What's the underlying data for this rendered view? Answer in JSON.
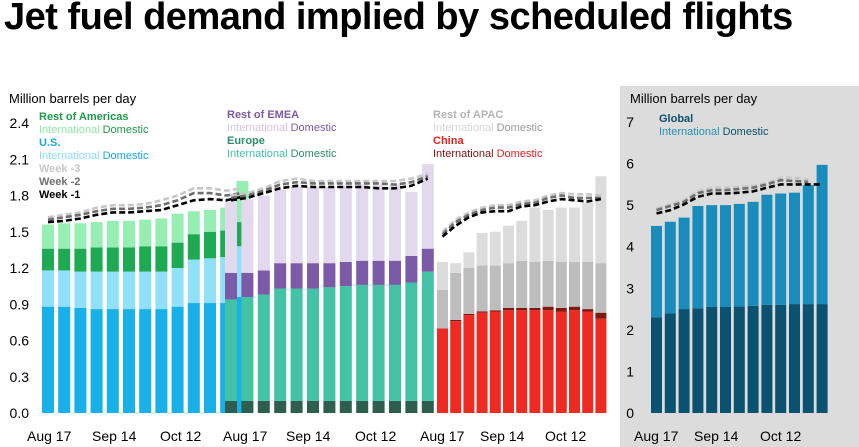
{
  "page": {
    "title": "Jet fuel demand implied by scheduled flights"
  },
  "chart_data": {
    "type": "bar",
    "panels": [
      {
        "id": "americas",
        "ylabel": "Million barrels per day",
        "ylim": [
          0,
          2.4
        ],
        "yticks": [
          "0.0",
          "0.3",
          "0.6",
          "0.9",
          "1.2",
          "1.5",
          "1.8",
          "2.1",
          "2.4"
        ],
        "xticks": [
          "Aug 17",
          "Sep 14",
          "Oct 12"
        ],
        "legend": [
          {
            "title": "Rest of Americas",
            "title_color": "#1e9a48",
            "parts": [
              {
                "text": "International",
                "color": "#8ee8a8"
              },
              {
                "text": " Domestic",
                "color": "#1e9a48"
              }
            ]
          },
          {
            "title": "U.S.",
            "title_color": "#17a8e0",
            "parts": [
              {
                "text": "International",
                "color": "#8cdcf6"
              },
              {
                "text": " Domestic",
                "color": "#17a8e0"
              }
            ]
          },
          {
            "title": "Week -3",
            "title_color": "#c8c8c8",
            "parts": []
          },
          {
            "title": "Week -2",
            "title_color": "#707070",
            "parts": []
          },
          {
            "title": "Week -1",
            "title_color": "#000000",
            "parts": []
          }
        ],
        "colors": [
          "#17b0e8",
          "#90e0fa",
          "#1eaa52",
          "#96eeb2"
        ],
        "stack_names": [
          "U.S. Domestic",
          "U.S. International",
          "Rest of Americas Domestic",
          "Rest of Americas International"
        ],
        "stacks": [
          [
            0.88,
            0.3,
            0.18,
            0.2
          ],
          [
            0.88,
            0.3,
            0.18,
            0.21
          ],
          [
            0.87,
            0.3,
            0.19,
            0.21
          ],
          [
            0.86,
            0.31,
            0.2,
            0.21
          ],
          [
            0.86,
            0.31,
            0.2,
            0.22
          ],
          [
            0.86,
            0.31,
            0.2,
            0.22
          ],
          [
            0.86,
            0.31,
            0.21,
            0.22
          ],
          [
            0.86,
            0.31,
            0.21,
            0.23
          ],
          [
            0.88,
            0.32,
            0.21,
            0.24
          ],
          [
            0.91,
            0.36,
            0.21,
            0.19
          ],
          [
            0.91,
            0.37,
            0.22,
            0.18
          ],
          [
            0.91,
            0.38,
            0.22,
            0.19
          ],
          [
            0.96,
            0.42,
            0.2,
            0.34
          ]
        ],
        "week3": [
          1.62,
          1.64,
          1.66,
          1.7,
          1.72,
          1.72,
          1.73,
          1.76,
          1.8,
          1.86,
          1.86,
          1.84,
          1.86
        ],
        "week2": [
          1.6,
          1.62,
          1.64,
          1.67,
          1.69,
          1.69,
          1.7,
          1.72,
          1.76,
          1.82,
          1.82,
          1.8,
          1.82
        ],
        "week1": [
          1.58,
          1.59,
          1.61,
          1.64,
          1.66,
          1.66,
          1.67,
          1.68,
          1.72,
          1.76,
          1.77,
          1.76,
          1.79
        ]
      },
      {
        "id": "emea",
        "ylabel": "",
        "ylim": [
          0,
          2.4
        ],
        "yticks": [],
        "xticks": [
          "Aug 17",
          "Sep 14",
          "Oct 12"
        ],
        "legend": [
          {
            "title": "Rest of EMEA",
            "title_color": "#7b5aa8",
            "parts": [
              {
                "text": "International",
                "color": "#d2c6e6"
              },
              {
                "text": " Domestic",
                "color": "#7b5aa8"
              }
            ]
          },
          {
            "title": "Europe",
            "title_color": "#2e8e6e",
            "parts": [
              {
                "text": "International",
                "color": "#44c2a6"
              },
              {
                "text": " Domestic",
                "color": "#2e8e6e"
              }
            ]
          }
        ],
        "colors": [
          "#2e5e4e",
          "#44c2a6",
          "#7b5aa8",
          "#e2d9ee"
        ],
        "stack_names": [
          "Europe Domestic",
          "Europe International",
          "Rest of EMEA Domestic",
          "Rest of EMEA International"
        ],
        "stacks": [
          [
            0.1,
            0.84,
            0.22,
            0.59
          ],
          [
            0.1,
            0.86,
            0.2,
            0.61
          ],
          [
            0.1,
            0.88,
            0.2,
            0.62
          ],
          [
            0.1,
            0.93,
            0.21,
            0.61
          ],
          [
            0.1,
            0.93,
            0.21,
            0.63
          ],
          [
            0.1,
            0.93,
            0.21,
            0.63
          ],
          [
            0.1,
            0.94,
            0.2,
            0.63
          ],
          [
            0.1,
            0.95,
            0.2,
            0.63
          ],
          [
            0.1,
            0.96,
            0.2,
            0.63
          ],
          [
            0.1,
            0.96,
            0.2,
            0.63
          ],
          [
            0.1,
            0.96,
            0.2,
            0.63
          ],
          [
            0.1,
            0.98,
            0.22,
            0.53
          ],
          [
            0.1,
            1.07,
            0.19,
            0.7
          ]
        ],
        "week3": [
          1.8,
          1.82,
          1.86,
          1.92,
          1.94,
          1.92,
          1.92,
          1.92,
          1.92,
          1.92,
          1.92,
          1.94,
          1.98
        ],
        "week2": [
          1.78,
          1.8,
          1.84,
          1.89,
          1.91,
          1.9,
          1.9,
          1.9,
          1.9,
          1.9,
          1.89,
          1.91,
          1.96
        ],
        "week1": [
          1.76,
          1.78,
          1.82,
          1.86,
          1.88,
          1.87,
          1.87,
          1.87,
          1.87,
          1.86,
          1.86,
          1.88,
          1.94
        ]
      },
      {
        "id": "apac",
        "ylabel": "",
        "ylim": [
          0,
          2.4
        ],
        "yticks": [],
        "xticks": [
          "Aug 17",
          "Sep 14",
          "Oct 12"
        ],
        "legend": [
          {
            "title": "Rest of APAC",
            "title_color": "#b4b4b4",
            "parts": [
              {
                "text": "International",
                "color": "#d6d6d6"
              },
              {
                "text": " Domestic",
                "color": "#9a9a9a"
              }
            ]
          },
          {
            "title": "China",
            "title_color": "#e8201e",
            "parts": [
              {
                "text": "International",
                "color": "#7a1410"
              },
              {
                "text": " Domestic",
                "color": "#e8201e"
              }
            ]
          }
        ],
        "colors": [
          "#ee2a22",
          "#7e1812",
          "#bdbdbd",
          "#dcdcdc"
        ],
        "stack_names": [
          "China Domestic",
          "China International",
          "Rest of APAC Domestic",
          "Rest of APAC International"
        ],
        "stacks": [
          [
            0.7,
            0.0,
            0.32,
            0.23
          ],
          [
            0.76,
            0.01,
            0.39,
            0.08
          ],
          [
            0.81,
            0.01,
            0.38,
            0.13
          ],
          [
            0.83,
            0.01,
            0.38,
            0.27
          ],
          [
            0.84,
            0.01,
            0.37,
            0.28
          ],
          [
            0.85,
            0.02,
            0.37,
            0.31
          ],
          [
            0.85,
            0.02,
            0.39,
            0.33
          ],
          [
            0.85,
            0.02,
            0.38,
            0.45
          ],
          [
            0.85,
            0.03,
            0.38,
            0.42
          ],
          [
            0.84,
            0.03,
            0.38,
            0.45
          ],
          [
            0.85,
            0.03,
            0.37,
            0.45
          ],
          [
            0.84,
            0.02,
            0.39,
            0.49
          ],
          [
            0.78,
            0.05,
            0.41,
            0.72
          ]
        ],
        "week3": [
          1.5,
          1.6,
          1.66,
          1.7,
          1.72,
          1.72,
          1.75,
          1.76,
          1.8,
          1.82,
          1.81,
          1.81,
          1.8
        ],
        "week2": [
          1.48,
          1.58,
          1.64,
          1.68,
          1.7,
          1.7,
          1.73,
          1.74,
          1.78,
          1.8,
          1.78,
          1.78,
          1.78
        ],
        "week1": [
          1.46,
          1.55,
          1.62,
          1.66,
          1.67,
          1.67,
          1.71,
          1.72,
          1.75,
          1.77,
          1.76,
          1.75,
          1.77
        ]
      },
      {
        "id": "global",
        "ylabel": "Million barrels per day",
        "ylim": [
          0,
          7
        ],
        "yticks": [
          "0",
          "1",
          "2",
          "3",
          "4",
          "5",
          "6",
          "7"
        ],
        "xticks": [
          "Aug 17",
          "Sep 14",
          "Oct 12"
        ],
        "legend": [
          {
            "title": "Global",
            "title_color": "#0b4f6c",
            "parts": [
              {
                "text": "International",
                "color": "#2292c2"
              },
              {
                "text": " Domestic",
                "color": "#0b4f6c"
              }
            ]
          }
        ],
        "colors": [
          "#0a5270",
          "#1a8cbc"
        ],
        "stack_names": [
          "Global Domestic",
          "Global International"
        ],
        "stacks": [
          [
            2.3,
            2.2
          ],
          [
            2.4,
            2.2
          ],
          [
            2.5,
            2.2
          ],
          [
            2.52,
            2.46
          ],
          [
            2.55,
            2.45
          ],
          [
            2.55,
            2.45
          ],
          [
            2.56,
            2.47
          ],
          [
            2.58,
            2.5
          ],
          [
            2.6,
            2.65
          ],
          [
            2.6,
            2.68
          ],
          [
            2.62,
            2.68
          ],
          [
            2.62,
            2.86
          ],
          [
            2.62,
            3.35
          ]
        ],
        "week3": [
          4.92,
          5.02,
          5.12,
          5.34,
          5.42,
          5.42,
          5.44,
          5.46,
          5.54,
          5.66,
          5.66,
          5.62,
          null
        ],
        "week2": [
          4.88,
          4.98,
          5.08,
          5.29,
          5.36,
          5.36,
          5.39,
          5.42,
          5.5,
          5.6,
          5.58,
          5.56,
          null
        ],
        "week1": [
          4.8,
          4.88,
          5.02,
          5.2,
          5.28,
          5.28,
          5.3,
          5.33,
          5.42,
          5.5,
          5.5,
          5.5,
          5.5
        ]
      }
    ]
  }
}
